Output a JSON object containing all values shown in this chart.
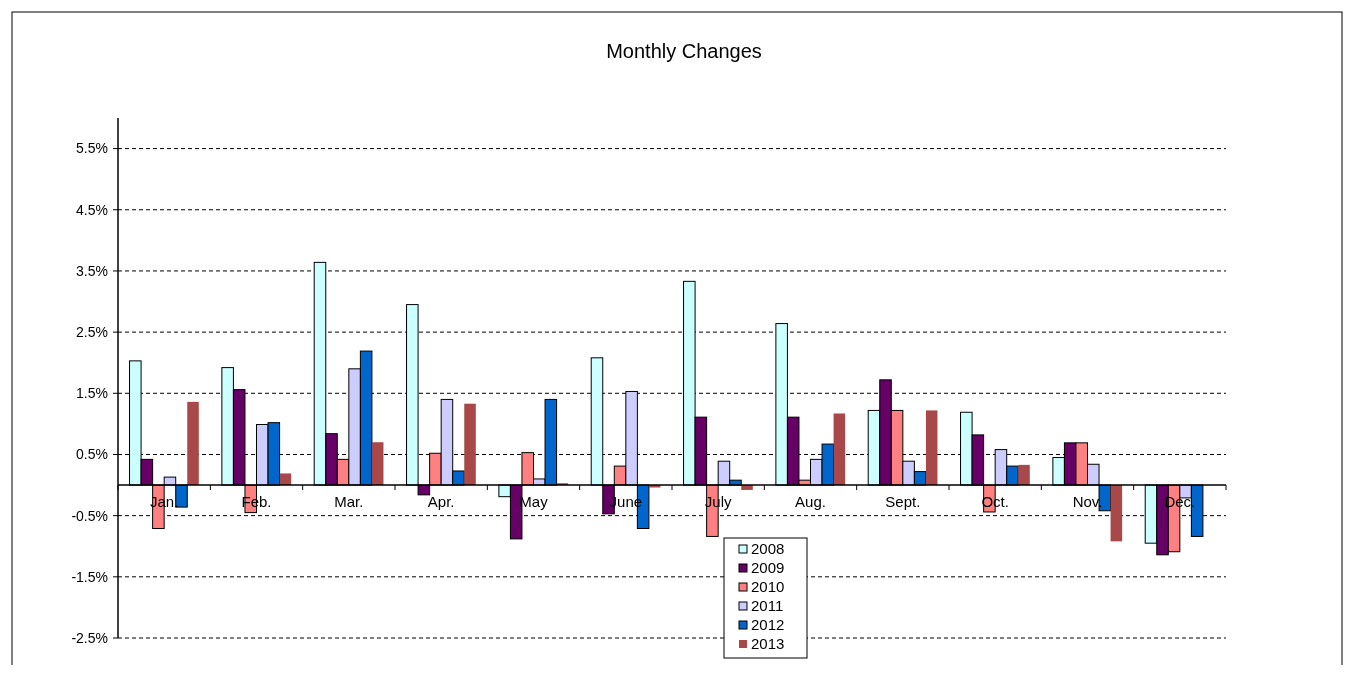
{
  "chart_data": {
    "type": "bar",
    "title": "Monthly Changes",
    "categories": [
      "Jan.",
      "Feb.",
      "Mar.",
      "Apr.",
      "May",
      "June",
      "July",
      "Aug.",
      "Sept.",
      "Oct.",
      "Nov.",
      "Dec."
    ],
    "series": [
      {
        "name": "2008",
        "color": "#ccffff",
        "values": [
          2.03,
          1.92,
          3.64,
          2.95,
          -0.19,
          2.08,
          3.33,
          2.64,
          1.22,
          1.19,
          0.45,
          -0.95
        ]
      },
      {
        "name": "2009",
        "color": "#660066",
        "values": [
          0.42,
          1.56,
          0.84,
          -0.16,
          -0.88,
          -0.47,
          1.11,
          1.11,
          1.72,
          0.82,
          0.69,
          -1.14
        ]
      },
      {
        "name": "2010",
        "color": "#ff8080",
        "values": [
          -0.71,
          -0.45,
          0.42,
          0.52,
          0.53,
          0.31,
          -0.84,
          0.08,
          1.22,
          -0.44,
          0.69,
          -1.09
        ]
      },
      {
        "name": "2011",
        "color": "#ccccff",
        "values": [
          0.13,
          0.99,
          1.9,
          1.4,
          0.1,
          1.53,
          0.39,
          0.42,
          0.39,
          0.58,
          0.34,
          -0.21
        ]
      },
      {
        "name": "2012",
        "color": "#0066cc",
        "values": [
          -0.36,
          1.02,
          2.19,
          0.23,
          1.4,
          -0.71,
          0.08,
          0.67,
          0.22,
          0.31,
          -0.42,
          -0.84
        ]
      },
      {
        "name": "2013",
        "color": "#a84848",
        "values": [
          1.36,
          0.19,
          0.7,
          1.33,
          0.03,
          -0.04,
          -0.08,
          1.17,
          1.22,
          0.33,
          -0.92,
          null
        ]
      }
    ],
    "ylim": [
      -2.5,
      6
    ],
    "yticks": [
      {
        "value": -2.5,
        "label": "-2.5%"
      },
      {
        "value": -1.5,
        "label": "-1.5%"
      },
      {
        "value": -0.5,
        "label": "-0.5%"
      },
      {
        "value": 0.5,
        "label": "0.5%"
      },
      {
        "value": 1.5,
        "label": "1.5%"
      },
      {
        "value": 2.5,
        "label": "2.5%"
      },
      {
        "value": 3.5,
        "label": "3.5%"
      },
      {
        "value": 4.5,
        "label": "4.5%"
      },
      {
        "value": 5.5,
        "label": "5.5%"
      }
    ],
    "grid": "y",
    "legend": "bottom"
  }
}
